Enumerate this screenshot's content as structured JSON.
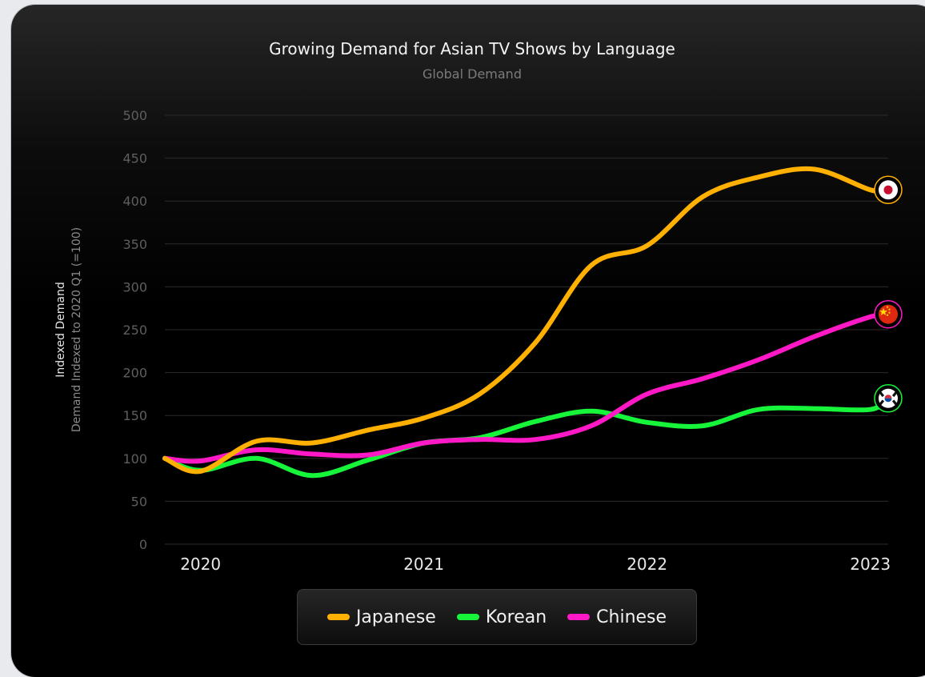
{
  "chart_data": {
    "type": "line",
    "title": "Growing Demand for Asian TV Shows by Language",
    "subtitle": "Global Demand",
    "ylabel": "Indexed Demand",
    "ylabel_sub": "Demand Indexed to  2020 Q1 (=100)",
    "ylim": [
      0,
      500
    ],
    "yticks": [
      0,
      50,
      100,
      150,
      200,
      250,
      300,
      350,
      400,
      450,
      500
    ],
    "xlim": [
      2019.84,
      2023.08
    ],
    "xticks": [
      2020,
      2021,
      2022,
      2023
    ],
    "xtick_labels": [
      "2020",
      "2021",
      "2022",
      "2023"
    ],
    "grid": "horizontal",
    "legend_position": "bottom",
    "series": [
      {
        "name": "Japanese",
        "color": "#ffb000",
        "end_marker_icon": "japan-flag-icon",
        "x": [
          2019.84,
          2020.0,
          2020.25,
          2020.5,
          2020.75,
          2021.0,
          2021.25,
          2021.5,
          2021.75,
          2022.0,
          2022.25,
          2022.5,
          2022.75,
          2023.0,
          2023.08
        ],
        "y": [
          100,
          85,
          120,
          118,
          133,
          147,
          175,
          235,
          325,
          348,
          405,
          428,
          437,
          413,
          413
        ]
      },
      {
        "name": "Korean",
        "color": "#16f53a",
        "end_marker_icon": "south-korea-flag-icon",
        "x": [
          2019.84,
          2020.0,
          2020.25,
          2020.5,
          2020.75,
          2021.0,
          2021.25,
          2021.5,
          2021.75,
          2022.0,
          2022.25,
          2022.5,
          2022.75,
          2023.0,
          2023.08
        ],
        "y": [
          100,
          86,
          100,
          80,
          98,
          118,
          124,
          143,
          155,
          142,
          138,
          157,
          158,
          157,
          170
        ]
      },
      {
        "name": "Chinese",
        "color": "#ff19c6",
        "end_marker_icon": "china-flag-icon",
        "x": [
          2019.84,
          2020.0,
          2020.25,
          2020.5,
          2020.75,
          2021.0,
          2021.25,
          2021.5,
          2021.75,
          2022.0,
          2022.25,
          2022.5,
          2022.75,
          2023.0,
          2023.08
        ],
        "y": [
          100,
          97,
          110,
          105,
          104,
          118,
          122,
          122,
          138,
          175,
          193,
          215,
          242,
          265,
          268
        ]
      }
    ]
  }
}
